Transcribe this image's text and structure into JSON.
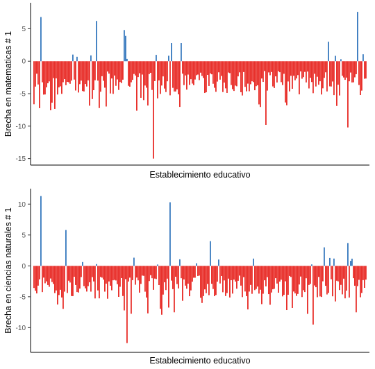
{
  "colors": {
    "positive": "#3a7bbf",
    "negative": "#e8302b",
    "axis": "#000000",
    "tick_text": "#4d4d4d"
  },
  "chart_data": [
    {
      "type": "bar",
      "xlabel": "Establecimiento educativo",
      "ylabel": "Brecha en matematicas # 1",
      "ylim": [
        -16,
        9
      ],
      "yticks": [
        5,
        0,
        -5,
        -10,
        -15
      ],
      "ytick_labels": [
        "5",
        "0",
        "-5",
        "-10",
        "-15"
      ],
      "grid": false,
      "n_bars": 240,
      "notable_values": [
        {
          "index": 5,
          "value": 6.8
        },
        {
          "index": 45,
          "value": 6.2
        },
        {
          "index": 65,
          "value": 4.8
        },
        {
          "index": 66,
          "value": 3.9
        },
        {
          "index": 86,
          "value": -15
        },
        {
          "index": 99,
          "value": 2.8
        },
        {
          "index": 106,
          "value": 2.8
        },
        {
          "index": 167,
          "value": -9.8
        },
        {
          "index": 212,
          "value": 3.0
        },
        {
          "index": 226,
          "value": -10.2
        },
        {
          "index": 233,
          "value": 7.6
        }
      ]
    },
    {
      "type": "bar",
      "xlabel": "Establecimiento educativo",
      "ylabel": "Brecha en ciencias naturales # 1",
      "ylim": [
        -14,
        12.5
      ],
      "yticks": [
        10,
        5,
        0,
        -5,
        -10
      ],
      "ytick_labels": [
        "10",
        "5",
        "0",
        "-5",
        "-10"
      ],
      "grid": false,
      "n_bars": 240,
      "notable_values": [
        {
          "index": 5,
          "value": 11.3
        },
        {
          "index": 23,
          "value": 5.8
        },
        {
          "index": 67,
          "value": -12.5
        },
        {
          "index": 98,
          "value": 10.3
        },
        {
          "index": 127,
          "value": 4.0
        },
        {
          "index": 201,
          "value": -9.5
        },
        {
          "index": 209,
          "value": 3.0
        },
        {
          "index": 226,
          "value": 3.7
        }
      ]
    }
  ]
}
